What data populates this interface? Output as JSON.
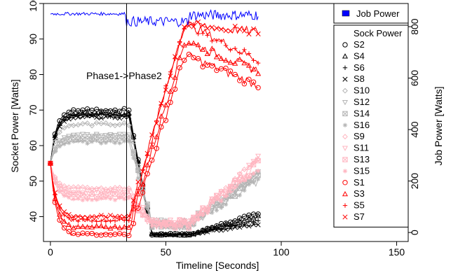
{
  "chart_data": {
    "type": "line",
    "xlabel": "Timeline [Seconds]",
    "ylabel_left": "Socket Power [Watts]",
    "ylabel_right": "Job Power [Watts]",
    "xlim": [
      -3,
      155
    ],
    "ylim_left": [
      33,
      100
    ],
    "ylim_right": [
      -35,
      890
    ],
    "xticks": [
      0,
      50,
      100,
      150
    ],
    "yticks_left": [
      40,
      50,
      60,
      70,
      80,
      90,
      100
    ],
    "yticks_right": [
      0,
      200,
      400,
      600,
      800
    ],
    "grid": false,
    "phase_line": {
      "x": 33,
      "label": "Phase1->Phase2"
    },
    "job_power_legend": {
      "label": "Job Power",
      "color": "#0000ff"
    },
    "sock_legend_title": "Sock Power",
    "series": [
      {
        "name": "S2",
        "color": "#000000",
        "marker": "circle",
        "phase1": [
          55,
          70
        ],
        "phase2": [
          35,
          41
        ]
      },
      {
        "name": "S4",
        "color": "#000000",
        "marker": "triangle",
        "phase1": [
          55,
          69
        ],
        "phase2": [
          35,
          40
        ]
      },
      {
        "name": "S6",
        "color": "#000000",
        "marker": "plus",
        "phase1": [
          55,
          68.5
        ],
        "phase2": [
          35,
          39
        ]
      },
      {
        "name": "S8",
        "color": "#000000",
        "marker": "x",
        "phase1": [
          55,
          68
        ],
        "phase2": [
          35,
          38
        ]
      },
      {
        "name": "S10",
        "color": "#b4b4b4",
        "marker": "diamond",
        "phase1": [
          55,
          66
        ],
        "phase2": [
          38,
          53
        ]
      },
      {
        "name": "S12",
        "color": "#b4b4b4",
        "marker": "triangle-down",
        "phase1": [
          55,
          63
        ],
        "phase2": [
          38,
          52
        ]
      },
      {
        "name": "S14",
        "color": "#b4b4b4",
        "marker": "square-x",
        "phase1": [
          55,
          62
        ],
        "phase2": [
          38,
          51
        ]
      },
      {
        "name": "S16",
        "color": "#b4b4b4",
        "marker": "asterisk",
        "phase1": [
          55,
          61
        ],
        "phase2": [
          38,
          50
        ]
      },
      {
        "name": "S9",
        "color": "#ffb6c1",
        "marker": "diamond",
        "phase1": [
          55,
          48
        ],
        "phase2": [
          38,
          57
        ]
      },
      {
        "name": "S11",
        "color": "#ffb6c1",
        "marker": "triangle-down",
        "phase1": [
          55,
          47
        ],
        "phase2": [
          38,
          56
        ]
      },
      {
        "name": "S13",
        "color": "#ffb6c1",
        "marker": "square-x",
        "phase1": [
          55,
          46
        ],
        "phase2": [
          38,
          55
        ]
      },
      {
        "name": "S15",
        "color": "#ffb6c1",
        "marker": "asterisk",
        "phase1": [
          55,
          45
        ],
        "phase2": [
          38,
          54
        ]
      },
      {
        "name": "S1",
        "color": "#ff0000",
        "marker": "circle",
        "phase1": [
          55,
          35
        ],
        "phase2": [
          85,
          77
        ]
      },
      {
        "name": "S3",
        "color": "#ff0000",
        "marker": "triangle",
        "phase1": [
          55,
          37
        ],
        "phase2": [
          89,
          81
        ]
      },
      {
        "name": "S5",
        "color": "#ff0000",
        "marker": "plus",
        "phase1": [
          55,
          39
        ],
        "phase2": [
          94,
          84
        ]
      },
      {
        "name": "S7",
        "color": "#ff0000",
        "marker": "x",
        "phase1": [
          55,
          40
        ],
        "phase2": [
          94,
          92
        ]
      }
    ],
    "job_power": {
      "name": "Job Power",
      "color": "#0000ff",
      "x_range": [
        0,
        90
      ],
      "approx_level": [
        850,
        820,
        845
      ]
    }
  }
}
